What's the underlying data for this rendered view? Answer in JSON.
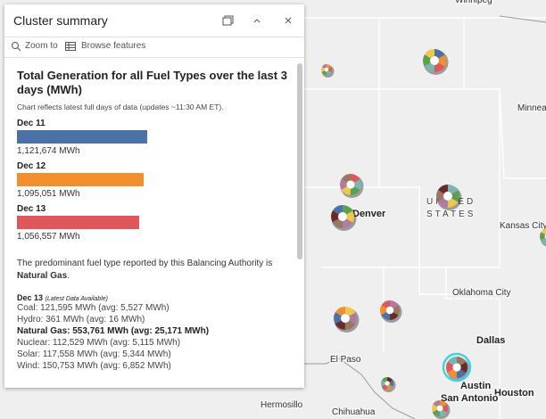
{
  "popup": {
    "title": "Cluster summary",
    "actions": [
      "Zoom to",
      "Browse features"
    ],
    "heading": "Total Generation for all Fuel Types over the last 3 days (MWh)",
    "note": "Chart reflects latest full days of data (updates ~11:30 AM ET).",
    "bars": [
      {
        "date": "Dec 11",
        "value": 1121674,
        "label": "1,121,674 MWh",
        "color": "#4a72a6"
      },
      {
        "date": "Dec 12",
        "value": 1095051,
        "label": "1,095,051 MWh",
        "color": "#f28e2b"
      },
      {
        "date": "Dec 13",
        "value": 1056557,
        "label": "1,056,557 MWh",
        "color": "#e15759"
      }
    ],
    "summary": {
      "text": "The predominant fuel type reported by this Balancing Authority is",
      "fuel": "Natural Gas",
      "end": "."
    },
    "latest": {
      "date": "Dec 13",
      "note": "(Latest Data Available)",
      "rows": [
        {
          "text": "Coal: 121,595 MWh (avg: 5,527 MWh)",
          "bold": false
        },
        {
          "text": "Hydro: 361 MWh (avg: 16 MWh)",
          "bold": false
        },
        {
          "text": "Natural Gas: 553,761 MWh (avg: 25,171 MWh)",
          "bold": true
        },
        {
          "text": "Nuclear: 112,529 MWh (avg: 5,115 MWh)",
          "bold": false
        },
        {
          "text": "Solar: 117,558 MWh (avg: 5,344 MWh)",
          "bold": false
        },
        {
          "text": "Wind: 150,753 MWh (avg: 6,852 MWh)",
          "bold": false
        }
      ]
    }
  },
  "map": {
    "labels": [
      "Winnipeg",
      "Minneap",
      "UNITED",
      "STATES",
      "Denver",
      "Kansas City",
      "Oklahoma City",
      "Dallas",
      "El Paso",
      "Austin",
      "Houston",
      "San Antonio",
      "Hermosillo",
      "Chihuahua"
    ]
  }
}
